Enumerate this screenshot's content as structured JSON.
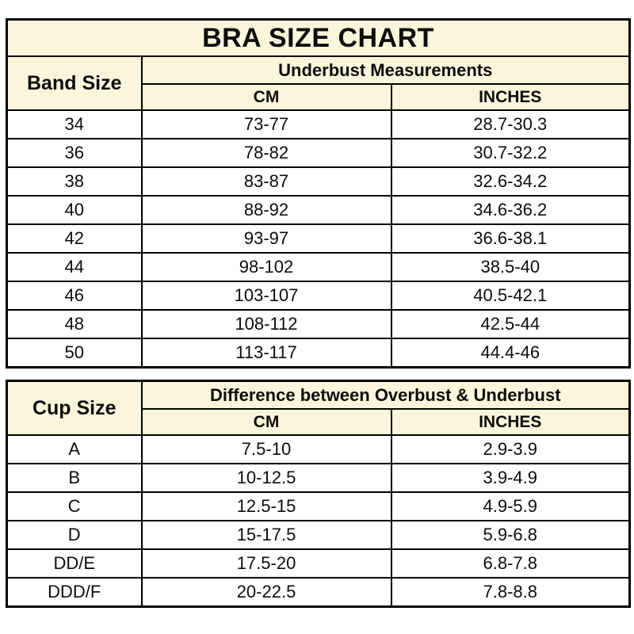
{
  "colors": {
    "header_bg": "#FBF6DB",
    "border": "#000000",
    "text": "#0d0d0d",
    "row_bg": "#ffffff"
  },
  "chart_data": [
    {
      "type": "table",
      "title": "BRA SIZE CHART",
      "corner_header": "Band Size",
      "group_header": "Underbust Measurements",
      "col_headers": [
        "CM",
        "INCHES"
      ],
      "rows": [
        [
          "34",
          "73-77",
          "28.7-30.3"
        ],
        [
          "36",
          "78-82",
          "30.7-32.2"
        ],
        [
          "38",
          "83-87",
          "32.6-34.2"
        ],
        [
          "40",
          "88-92",
          "34.6-36.2"
        ],
        [
          "42",
          "93-97",
          "36.6-38.1"
        ],
        [
          "44",
          "98-102",
          "38.5-40"
        ],
        [
          "46",
          "103-107",
          "40.5-42.1"
        ],
        [
          "48",
          "108-112",
          "42.5-44"
        ],
        [
          "50",
          "113-117",
          "44.4-46"
        ]
      ]
    },
    {
      "type": "table",
      "title": "",
      "corner_header": "Cup Size",
      "group_header": "Difference between Overbust & Underbust",
      "col_headers": [
        "CM",
        "INCHES"
      ],
      "rows": [
        [
          "A",
          "7.5-10",
          "2.9-3.9"
        ],
        [
          "B",
          "10-12.5",
          "3.9-4.9"
        ],
        [
          "C",
          "12.5-15",
          "4.9-5.9"
        ],
        [
          "D",
          "15-17.5",
          "5.9-6.8"
        ],
        [
          "DD/E",
          "17.5-20",
          "6.8-7.8"
        ],
        [
          "DDD/F",
          "20-22.5",
          "7.8-8.8"
        ]
      ]
    }
  ]
}
